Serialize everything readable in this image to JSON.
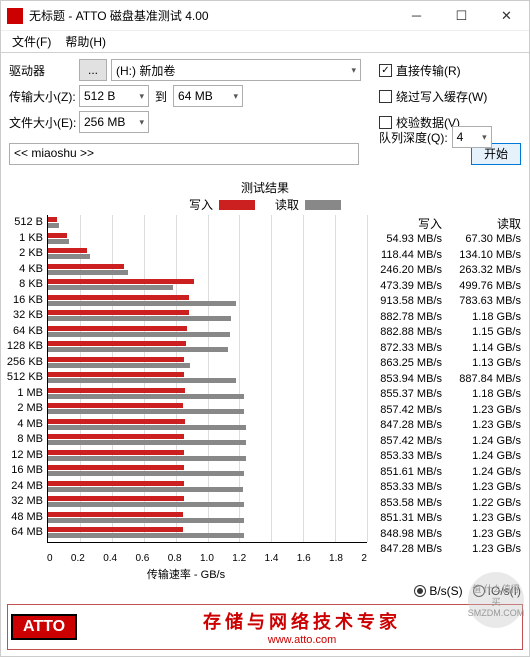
{
  "window": {
    "title": "无标题 - ATTO 磁盘基准测试 4.00",
    "minimize": "─",
    "maximize": "☐",
    "close": "✕"
  },
  "menu": {
    "file": "文件(F)",
    "help": "帮助(H)"
  },
  "controls": {
    "drive_label": "驱动器",
    "drive_btn": "...",
    "drive_value": "(H:) 新加卷",
    "transfer_label": "传输大小(Z):",
    "transfer_from": "512 B",
    "transfer_to_label": "到",
    "transfer_to": "64 MB",
    "filesize_label": "文件大小(E):",
    "filesize_value": "256 MB",
    "direct_io": "直接传输(R)",
    "bypass_cache": "绕过写入缓存(W)",
    "verify": "校验数据(V)",
    "queue_label": "队列深度(Q):",
    "queue_value": "4",
    "start": "开始",
    "desc": "<< miaoshu >>"
  },
  "results": {
    "title": "测试结果",
    "write_label": "写入",
    "read_label": "读取",
    "xlabel": "传输速率 - GB/s",
    "max_gbps": 2.0,
    "xticks": [
      "0",
      "0.2",
      "0.4",
      "0.6",
      "0.8",
      "1.0",
      "1.2",
      "1.4",
      "1.6",
      "1.8",
      "2"
    ],
    "rows": [
      {
        "label": "512 B",
        "write": "54.93 MB/s",
        "read": "67.30 MB/s",
        "w": 0.05493,
        "r": 0.0673
      },
      {
        "label": "1 KB",
        "write": "118.44 MB/s",
        "read": "134.10 MB/s",
        "w": 0.11844,
        "r": 0.1341
      },
      {
        "label": "2 KB",
        "write": "246.20 MB/s",
        "read": "263.32 MB/s",
        "w": 0.2462,
        "r": 0.26332
      },
      {
        "label": "4 KB",
        "write": "473.39 MB/s",
        "read": "499.76 MB/s",
        "w": 0.47339,
        "r": 0.49976
      },
      {
        "label": "8 KB",
        "write": "913.58 MB/s",
        "read": "783.63 MB/s",
        "w": 0.91358,
        "r": 0.78363
      },
      {
        "label": "16 KB",
        "write": "882.78 MB/s",
        "read": "1.18 GB/s",
        "w": 0.88278,
        "r": 1.18
      },
      {
        "label": "32 KB",
        "write": "882.88 MB/s",
        "read": "1.15 GB/s",
        "w": 0.88288,
        "r": 1.15
      },
      {
        "label": "64 KB",
        "write": "872.33 MB/s",
        "read": "1.14 GB/s",
        "w": 0.87233,
        "r": 1.14
      },
      {
        "label": "128 KB",
        "write": "863.25 MB/s",
        "read": "1.13 GB/s",
        "w": 0.86325,
        "r": 1.13
      },
      {
        "label": "256 KB",
        "write": "853.94 MB/s",
        "read": "887.84 MB/s",
        "w": 0.85394,
        "r": 0.88784
      },
      {
        "label": "512 KB",
        "write": "855.37 MB/s",
        "read": "1.18 GB/s",
        "w": 0.85537,
        "r": 1.18
      },
      {
        "label": "1 MB",
        "write": "857.42 MB/s",
        "read": "1.23 GB/s",
        "w": 0.85742,
        "r": 1.23
      },
      {
        "label": "2 MB",
        "write": "847.28 MB/s",
        "read": "1.23 GB/s",
        "w": 0.84728,
        "r": 1.23
      },
      {
        "label": "4 MB",
        "write": "857.42 MB/s",
        "read": "1.24 GB/s",
        "w": 0.85742,
        "r": 1.24
      },
      {
        "label": "8 MB",
        "write": "853.33 MB/s",
        "read": "1.24 GB/s",
        "w": 0.85333,
        "r": 1.24
      },
      {
        "label": "12 MB",
        "write": "851.61 MB/s",
        "read": "1.24 GB/s",
        "w": 0.85161,
        "r": 1.24
      },
      {
        "label": "16 MB",
        "write": "853.33 MB/s",
        "read": "1.23 GB/s",
        "w": 0.85333,
        "r": 1.23
      },
      {
        "label": "24 MB",
        "write": "853.58 MB/s",
        "read": "1.22 GB/s",
        "w": 0.85358,
        "r": 1.22
      },
      {
        "label": "32 MB",
        "write": "851.31 MB/s",
        "read": "1.23 GB/s",
        "w": 0.85131,
        "r": 1.23
      },
      {
        "label": "48 MB",
        "write": "848.98 MB/s",
        "read": "1.23 GB/s",
        "w": 0.84898,
        "r": 1.23
      },
      {
        "label": "64 MB",
        "write": "847.28 MB/s",
        "read": "1.23 GB/s",
        "w": 0.84728,
        "r": 1.23
      }
    ],
    "unit_bps": "B/s(S)",
    "unit_iops": "IO/s(I)"
  },
  "footer": {
    "logo": "ATTO",
    "text": "存储与网络技术专家",
    "url": "www.atto.com"
  },
  "colors": {
    "write": "#cc2020",
    "read": "#888888",
    "border": "#adadad",
    "accent": "#0078d7"
  },
  "watermark": "值 什么值得买 SMZDM.COM"
}
